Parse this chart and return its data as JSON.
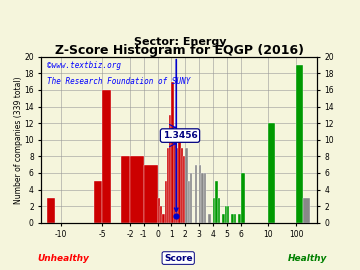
{
  "title": "Z-Score Histogram for EQGP (2016)",
  "subtitle": "Sector: Energy",
  "watermark1": "©www.textbiz.org",
  "watermark2": "The Research Foundation of SUNY",
  "score_value": 1.3456,
  "annotation": "1.3456",
  "bg_color": "#f5f5dc",
  "red": "#cc0000",
  "gray": "#888888",
  "green": "#009900",
  "blue": "#0000cc",
  "title_fs": 9,
  "sub_fs": 8,
  "wm_fs": 5.5,
  "tick_fs": 5.5,
  "label_fs": 5.5,
  "annot_fs": 6.5,
  "ylim": [
    0,
    20
  ],
  "tick_scores": [
    -10,
    -5,
    -2,
    -1,
    0,
    1,
    2,
    3,
    4,
    5,
    6,
    10,
    100
  ],
  "tick_display": [
    0.5,
    2.0,
    3.0,
    3.5,
    4.0,
    4.5,
    5.0,
    5.5,
    6.0,
    6.5,
    7.0,
    8.0,
    9.0
  ],
  "yticks": [
    0,
    2,
    4,
    6,
    8,
    10,
    12,
    14,
    16,
    18,
    20
  ],
  "bars": [
    [
      0.0,
      0.3,
      3,
      "red"
    ],
    [
      1.7,
      0.3,
      5,
      "red"
    ],
    [
      2.0,
      0.33,
      16,
      "red"
    ],
    [
      2.67,
      0.33,
      8,
      "red"
    ],
    [
      3.0,
      0.5,
      8,
      "red"
    ],
    [
      3.5,
      0.5,
      7,
      "red"
    ],
    [
      4.0,
      0.0833,
      3,
      "red"
    ],
    [
      4.0833,
      0.0833,
      2,
      "red"
    ],
    [
      4.1666,
      0.0833,
      1,
      "red"
    ],
    [
      4.25,
      0.0833,
      5,
      "red"
    ],
    [
      4.3333,
      0.0833,
      9,
      "red"
    ],
    [
      4.4166,
      0.0833,
      13,
      "red"
    ],
    [
      4.5,
      0.0833,
      17,
      "red"
    ],
    [
      4.5833,
      0.0833,
      11,
      "red"
    ],
    [
      4.6666,
      0.0833,
      9,
      "red"
    ],
    [
      4.75,
      0.0833,
      11,
      "red"
    ],
    [
      4.8333,
      0.0833,
      9,
      "red"
    ],
    [
      4.9166,
      0.0833,
      8,
      "red"
    ],
    [
      5.0,
      0.0833,
      9,
      "gray"
    ],
    [
      5.0833,
      0.0833,
      5,
      "gray"
    ],
    [
      5.1666,
      0.0833,
      6,
      "gray"
    ],
    [
      5.3333,
      0.0833,
      7,
      "gray"
    ],
    [
      5.5,
      0.0833,
      7,
      "gray"
    ],
    [
      5.5833,
      0.0833,
      6,
      "gray"
    ],
    [
      5.6666,
      0.0833,
      6,
      "gray"
    ],
    [
      5.8333,
      0.0833,
      1,
      "gray"
    ],
    [
      6.0,
      0.0833,
      3,
      "green"
    ],
    [
      6.0833,
      0.0833,
      5,
      "green"
    ],
    [
      6.1666,
      0.0833,
      3,
      "green"
    ],
    [
      6.3333,
      0.0833,
      1,
      "green"
    ],
    [
      6.4166,
      0.0833,
      2,
      "green"
    ],
    [
      6.5,
      0.0833,
      2,
      "green"
    ],
    [
      6.6666,
      0.0833,
      1,
      "green"
    ],
    [
      6.75,
      0.0833,
      1,
      "green"
    ],
    [
      6.9166,
      0.0833,
      1,
      "green"
    ],
    [
      7.0,
      0.1666,
      6,
      "green"
    ],
    [
      8.0,
      0.25,
      12,
      "green"
    ],
    [
      9.0,
      0.25,
      19,
      "green"
    ],
    [
      9.25,
      0.25,
      3,
      "gray"
    ]
  ],
  "xlim": [
    -0.2,
    9.75
  ]
}
